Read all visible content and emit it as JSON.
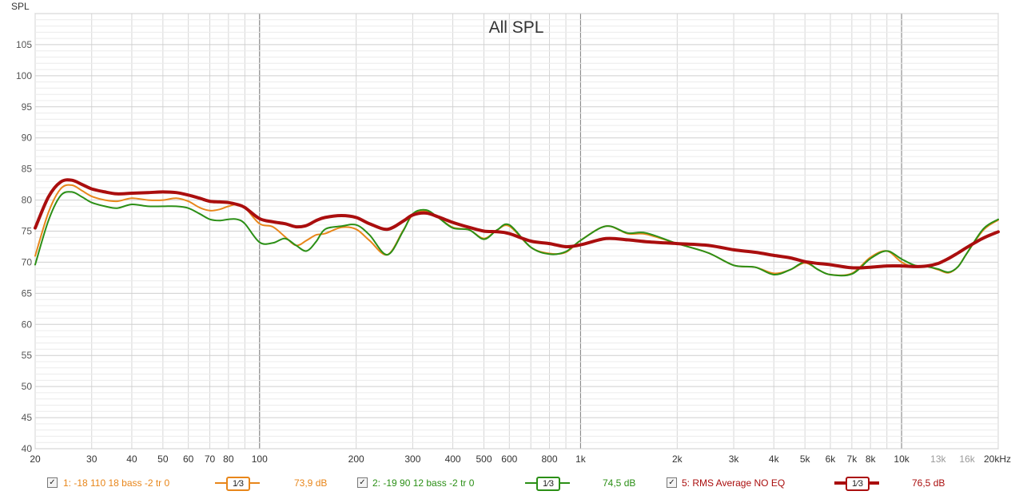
{
  "y_axis_label": "SPL",
  "chart_data": {
    "type": "line",
    "title": "All SPL",
    "ylabel": "SPL",
    "xlabel": "",
    "x_scale": "log",
    "xlim": [
      20,
      20000
    ],
    "ylim": [
      40,
      110
    ],
    "y_ticks": [
      "40",
      "45",
      "50",
      "55",
      "60",
      "65",
      "70",
      "75",
      "80",
      "85",
      "90",
      "95",
      "100",
      "105"
    ],
    "y_tick_values": [
      40,
      45,
      50,
      55,
      60,
      65,
      70,
      75,
      80,
      85,
      90,
      95,
      100,
      105
    ],
    "x_ticks": [
      {
        "value": 20,
        "label": "20"
      },
      {
        "value": 30,
        "label": "30"
      },
      {
        "value": 40,
        "label": "40"
      },
      {
        "value": 50,
        "label": "50"
      },
      {
        "value": 60,
        "label": "60"
      },
      {
        "value": 70,
        "label": "70"
      },
      {
        "value": 80,
        "label": "80"
      },
      {
        "value": 100,
        "label": "100"
      },
      {
        "value": 200,
        "label": "200"
      },
      {
        "value": 300,
        "label": "300"
      },
      {
        "value": 400,
        "label": "400"
      },
      {
        "value": 500,
        "label": "500"
      },
      {
        "value": 600,
        "label": "600"
      },
      {
        "value": 800,
        "label": "800"
      },
      {
        "value": 1000,
        "label": "1k"
      },
      {
        "value": 2000,
        "label": "2k"
      },
      {
        "value": 3000,
        "label": "3k"
      },
      {
        "value": 4000,
        "label": "4k"
      },
      {
        "value": 5000,
        "label": "5k"
      },
      {
        "value": 6000,
        "label": "6k"
      },
      {
        "value": 7000,
        "label": "7k"
      },
      {
        "value": 8000,
        "label": "8k"
      },
      {
        "value": 10000,
        "label": "10k"
      },
      {
        "value": 13000,
        "label": "13k"
      },
      {
        "value": 16000,
        "label": "16k"
      },
      {
        "value": 20000,
        "label": "20kHz"
      }
    ],
    "grid": true,
    "series": [
      {
        "name": "1: -18 110 18 bass -2 tr 0",
        "color": "#e8861a",
        "width": 2,
        "x": [
          20,
          22,
          24,
          26,
          28,
          30,
          33,
          36,
          40,
          45,
          50,
          55,
          60,
          65,
          70,
          75,
          80,
          85,
          90,
          100,
          110,
          120,
          130,
          140,
          150,
          160,
          180,
          200,
          220,
          250,
          280,
          300,
          330,
          360,
          400,
          450,
          500,
          550,
          600,
          700,
          800,
          900,
          1000,
          1200,
          1400,
          1600,
          2000,
          2500,
          3000,
          3500,
          4000,
          4500,
          5000,
          5500,
          6000,
          7000,
          8000,
          9000,
          10000,
          11000,
          12000,
          13000,
          14000,
          15000,
          16000,
          18000,
          20000
        ],
        "y": [
          71,
          78,
          81.8,
          82.4,
          81.5,
          80.6,
          80,
          79.8,
          80.3,
          80,
          80,
          80.3,
          79.8,
          78.8,
          78.3,
          78.5,
          79,
          79.3,
          78.8,
          76.2,
          75.7,
          74.1,
          72.7,
          73.5,
          74.4,
          74.6,
          75.6,
          75.3,
          73.5,
          71.2,
          75.1,
          77.6,
          78.2,
          77.2,
          75.6,
          75.2,
          73.8,
          75.2,
          75.8,
          72.4,
          71.4,
          71.6,
          73.5,
          75.8,
          74.6,
          74.5,
          73,
          71.5,
          69.5,
          69.2,
          68.2,
          68.8,
          69.9,
          68.8,
          68,
          68.2,
          70.8,
          71.8,
          70,
          69.2,
          69.3,
          68.8,
          68.3,
          69.3,
          71.5,
          75.2,
          76.8
        ]
      },
      {
        "name": "2: -19 90 12 bass -2 tr 0",
        "color": "#2b8f16",
        "width": 2,
        "x": [
          20,
          22,
          24,
          26,
          28,
          30,
          33,
          36,
          40,
          45,
          50,
          55,
          60,
          65,
          70,
          75,
          80,
          85,
          90,
          100,
          110,
          120,
          130,
          140,
          150,
          160,
          180,
          200,
          220,
          250,
          280,
          300,
          330,
          360,
          400,
          450,
          500,
          550,
          600,
          700,
          800,
          900,
          1000,
          1200,
          1400,
          1600,
          2000,
          2500,
          3000,
          3500,
          4000,
          4500,
          5000,
          5500,
          6000,
          7000,
          8000,
          9000,
          10000,
          11000,
          12000,
          13000,
          14000,
          15000,
          16000,
          18000,
          20000
        ],
        "y": [
          69.6,
          76.7,
          80.7,
          81.3,
          80.5,
          79.6,
          79,
          78.7,
          79.3,
          79,
          79,
          79,
          78.7,
          77.8,
          76.9,
          76.7,
          76.9,
          76.9,
          76.2,
          73.2,
          73.1,
          73.8,
          72.7,
          71.8,
          73.3,
          75.3,
          75.8,
          76,
          74.4,
          71.2,
          75,
          77.8,
          78.4,
          77.2,
          75.5,
          75.2,
          73.7,
          75.2,
          76,
          72.4,
          71.3,
          71.7,
          73.5,
          75.8,
          74.7,
          74.7,
          73,
          71.5,
          69.5,
          69.2,
          68,
          68.8,
          70,
          68.8,
          68,
          68.1,
          70.6,
          71.8,
          70.5,
          69.5,
          69.3,
          68.9,
          68.4,
          69.3,
          71.5,
          75.4,
          76.9
        ]
      },
      {
        "name": "5: RMS Average NO EQ",
        "color": "#aa0e0e",
        "width": 4,
        "x": [
          20,
          22,
          24,
          26,
          28,
          30,
          33,
          36,
          40,
          45,
          50,
          55,
          60,
          65,
          70,
          75,
          80,
          85,
          90,
          100,
          110,
          120,
          130,
          140,
          150,
          160,
          180,
          200,
          220,
          250,
          280,
          300,
          330,
          360,
          400,
          450,
          500,
          550,
          600,
          700,
          800,
          900,
          1000,
          1200,
          1400,
          1600,
          2000,
          2500,
          3000,
          3500,
          4000,
          4500,
          5000,
          5500,
          6000,
          7000,
          8000,
          9000,
          10000,
          11000,
          12000,
          13000,
          14000,
          15000,
          16000,
          18000,
          20000
        ],
        "y": [
          75.5,
          80.5,
          82.9,
          83.2,
          82.5,
          81.8,
          81.3,
          81,
          81.1,
          81.2,
          81.3,
          81.2,
          80.8,
          80.3,
          79.8,
          79.7,
          79.6,
          79.3,
          78.8,
          77,
          76.5,
          76.2,
          75.7,
          75.9,
          76.7,
          77.2,
          77.5,
          77.2,
          76.2,
          75.3,
          76.6,
          77.6,
          77.9,
          77.3,
          76.4,
          75.6,
          75,
          74.9,
          74.6,
          73.4,
          73,
          72.5,
          72.8,
          73.8,
          73.6,
          73.3,
          73,
          72.7,
          72,
          71.6,
          71.1,
          70.7,
          70.1,
          69.8,
          69.6,
          69.1,
          69.2,
          69.4,
          69.4,
          69.3,
          69.4,
          69.8,
          70.6,
          71.5,
          72.4,
          73.9,
          74.9
        ]
      }
    ]
  },
  "legend": [
    {
      "checkbox": "✓",
      "label": "1: -18 110 18 bass -2 tr 0",
      "smoothing": "1⁄3",
      "value": "73,9 dB",
      "color": "#e8861a"
    },
    {
      "checkbox": "✓",
      "label": "2: -19 90 12 bass -2 tr 0",
      "smoothing": "1⁄3",
      "value": "74,5 dB",
      "color": "#2b8f16"
    },
    {
      "checkbox": "✓",
      "label": "5: RMS Average NO EQ",
      "smoothing": "1⁄3",
      "value": "76,5 dB",
      "color": "#aa0e0e"
    }
  ]
}
